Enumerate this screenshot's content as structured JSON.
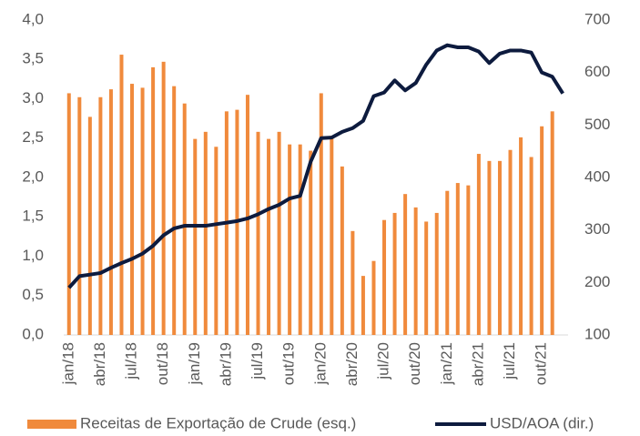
{
  "chart_data": {
    "type": "bar-line",
    "categories": [
      "jan/18",
      null,
      null,
      "abr/18",
      null,
      null,
      "jul/18",
      null,
      null,
      "out/18",
      null,
      null,
      "jan/19",
      null,
      null,
      "abr/19",
      null,
      null,
      "jul/19",
      null,
      null,
      "out/19",
      null,
      null,
      "jan/20",
      null,
      null,
      "abr/20",
      null,
      null,
      "jul/20",
      null,
      null,
      "out/20",
      null,
      null,
      "jan/21",
      null,
      null,
      "abr/21",
      null,
      null,
      "jul/21",
      null,
      null,
      "out/21",
      null,
      null
    ],
    "series": [
      {
        "name": "Receitas de Exportação de Crude (esq.)",
        "type": "bar",
        "color": "#f08a3c",
        "values": [
          3.07,
          3.02,
          2.77,
          3.02,
          3.12,
          3.56,
          3.19,
          3.14,
          3.4,
          3.47,
          3.16,
          2.94,
          2.49,
          2.58,
          2.39,
          2.84,
          2.86,
          3.05,
          2.58,
          2.49,
          2.58,
          2.42,
          2.42,
          2.34,
          3.07,
          2.53,
          2.14,
          1.32,
          0.75,
          0.94,
          1.46,
          1.55,
          1.79,
          1.62,
          1.44,
          1.55,
          1.83,
          1.93,
          1.9,
          2.3,
          2.21,
          2.21,
          2.35,
          2.51,
          2.26,
          2.65,
          2.84,
          null
        ]
      },
      {
        "name": "USD/AOA (dir.)",
        "type": "line",
        "axis": "y2",
        "color": "#0d1b3e",
        "values": [
          190,
          212,
          215,
          218,
          228,
          237,
          245,
          255,
          270,
          290,
          303,
          308,
          308,
          308,
          311,
          314,
          317,
          322,
          330,
          340,
          348,
          360,
          365,
          430,
          475,
          476,
          487,
          494,
          508,
          555,
          562,
          585,
          566,
          580,
          615,
          642,
          652,
          648,
          648,
          640,
          618,
          636,
          642,
          642,
          638,
          600,
          592,
          560
        ]
      }
    ],
    "ylim": [
      0,
      4
    ],
    "yticks": [
      {
        "value": 0,
        "label": "0,0"
      },
      {
        "value": 0.5,
        "label": "0,5"
      },
      {
        "value": 1,
        "label": "1,0"
      },
      {
        "value": 1.5,
        "label": "1,5"
      },
      {
        "value": 2,
        "label": "2,0"
      },
      {
        "value": 2.5,
        "label": "2,5"
      },
      {
        "value": 3,
        "label": "3,0"
      },
      {
        "value": 3.5,
        "label": "3,5"
      },
      {
        "value": 4,
        "label": "4,0"
      }
    ],
    "y2lim": [
      100,
      700
    ],
    "y2ticks": [
      100,
      200,
      300,
      400,
      500,
      600,
      700
    ],
    "legend": "bottom"
  }
}
